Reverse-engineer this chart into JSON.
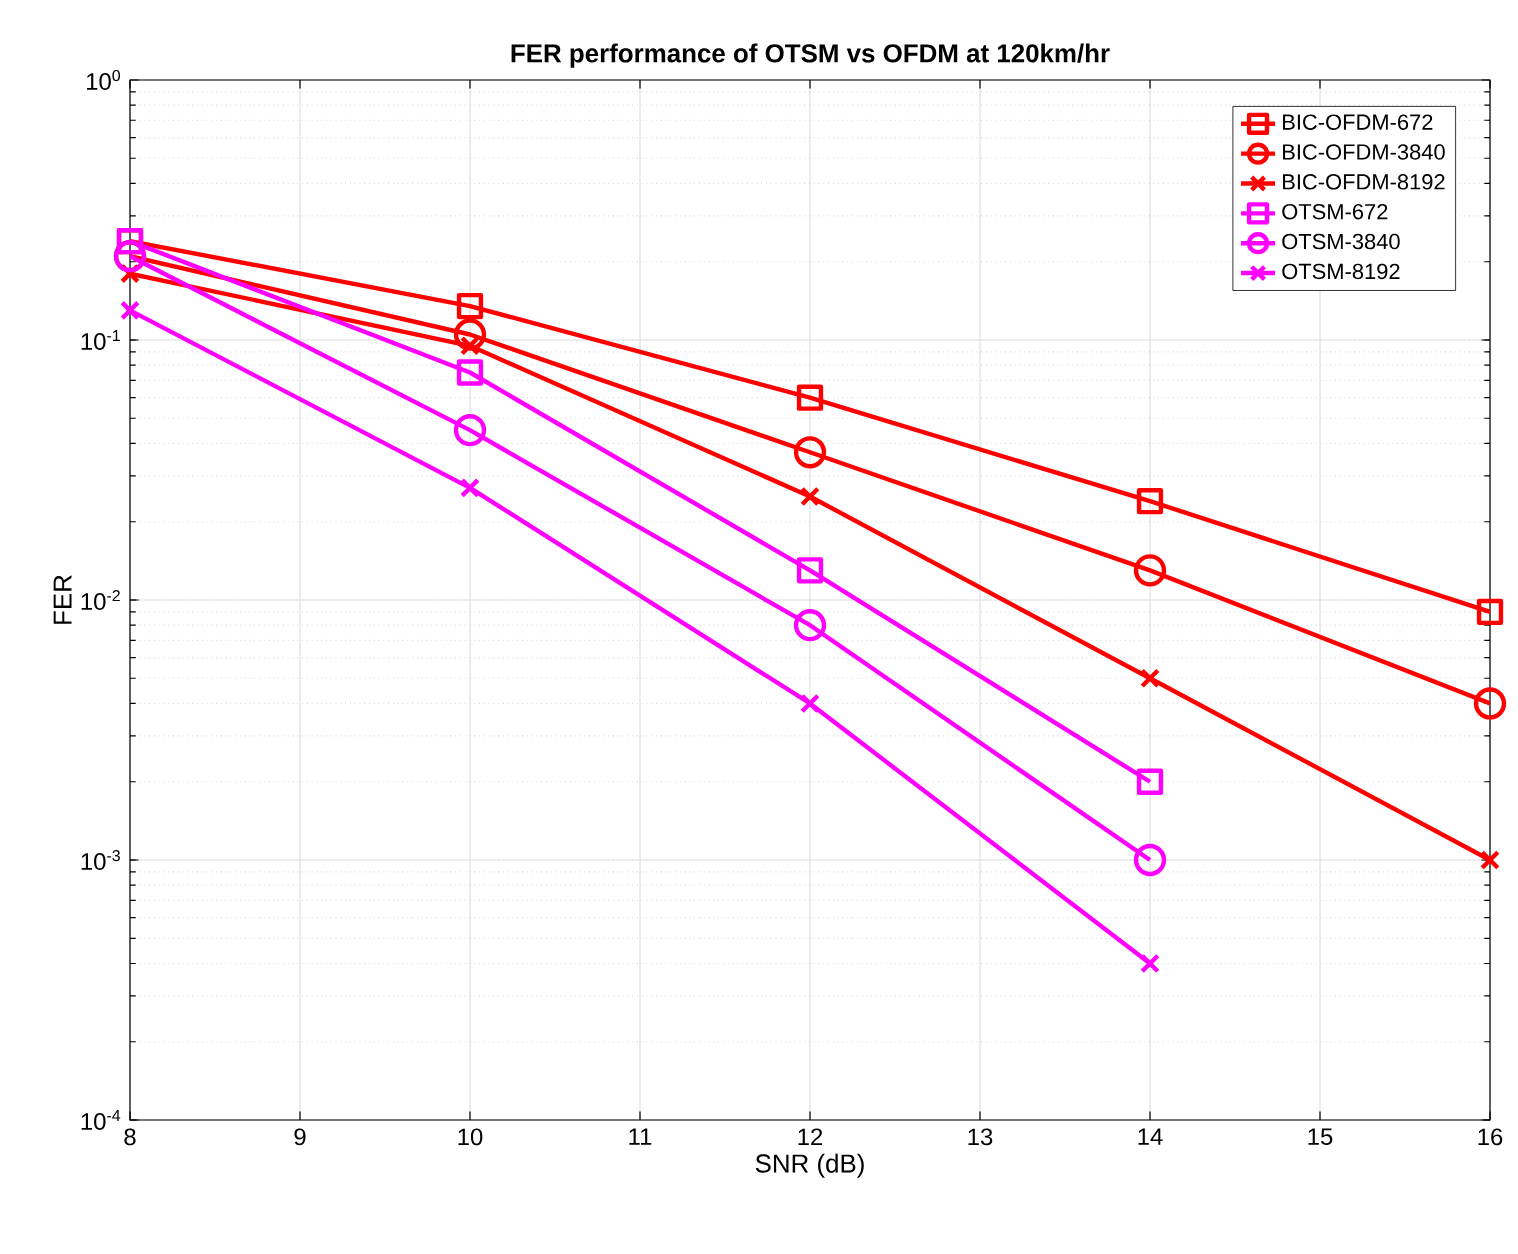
{
  "chart_data": {
    "type": "line",
    "title": "FER performance of OTSM vs OFDM at 120km/hr",
    "xlabel": "SNR (dB)",
    "ylabel": "FER",
    "log": "y",
    "grid": true,
    "legend": "top right",
    "line_style": "solid",
    "xlim": [
      8,
      16
    ],
    "xticks": [
      8,
      9,
      10,
      11,
      12,
      13,
      14,
      15,
      16
    ],
    "ylim": [
      0.0001,
      1
    ],
    "yticks": [
      {
        "value": 0.0001,
        "label": "10$^{-4}$"
      },
      {
        "value": 0.001,
        "label": "10$^{-3}$"
      },
      {
        "value": 0.01,
        "label": "10$^{-2}$"
      },
      {
        "value": 0.1,
        "label": "10$^{-1}$"
      },
      {
        "value": 1,
        "label": "10$^{0}$"
      }
    ],
    "series": [
      {
        "name": "BIC-OFDM-672",
        "color": "#ff0000",
        "marker": "square",
        "x": [
          8,
          10,
          12,
          14,
          16
        ],
        "values": [
          0.24,
          0.135,
          0.06,
          0.024,
          0.009
        ]
      },
      {
        "name": "BIC-OFDM-3840",
        "color": "#ff0000",
        "marker": "circle",
        "x": [
          8,
          10,
          12,
          14,
          16
        ],
        "values": [
          0.21,
          0.105,
          0.037,
          0.013,
          0.004
        ]
      },
      {
        "name": "BIC-OFDM-8192",
        "color": "#ff0000",
        "marker": "cross",
        "x": [
          8,
          10,
          12,
          14,
          16
        ],
        "values": [
          0.18,
          0.095,
          0.025,
          0.005,
          0.001
        ]
      },
      {
        "name": "OTSM-672",
        "color": "#ff00ff",
        "marker": "square",
        "x": [
          8,
          10,
          12,
          14
        ],
        "values": [
          0.24,
          0.075,
          0.013,
          0.002
        ]
      },
      {
        "name": "OTSM-3840",
        "color": "#ff00ff",
        "marker": "circle",
        "x": [
          8,
          10,
          12,
          14
        ],
        "values": [
          0.21,
          0.045,
          0.008,
          0.001
        ]
      },
      {
        "name": "OTSM-8192",
        "color": "#ff00ff",
        "marker": "cross",
        "x": [
          8,
          10,
          12,
          14
        ],
        "values": [
          0.13,
          0.027,
          0.004,
          0.0004
        ]
      }
    ]
  }
}
